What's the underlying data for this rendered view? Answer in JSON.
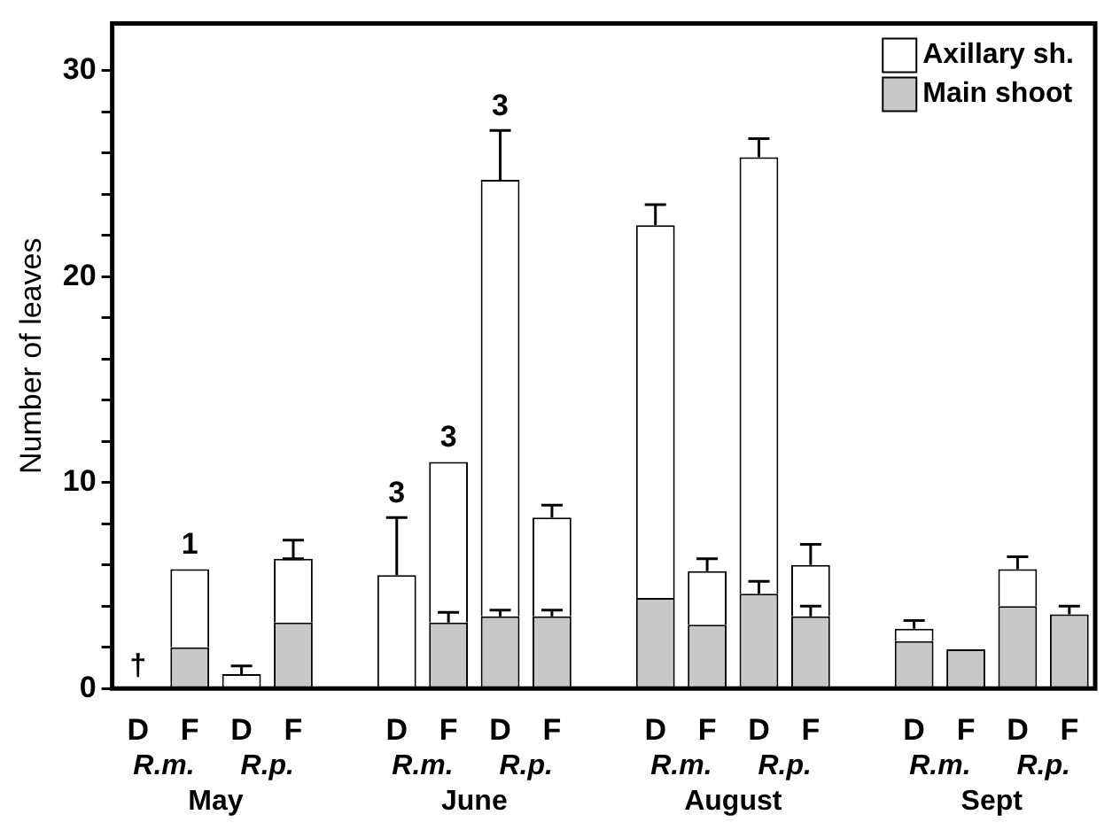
{
  "chart_data": {
    "type": "bar",
    "stacked": true,
    "ylabel": "Number of leaves",
    "categories": [
      "D",
      "F",
      "D",
      "F",
      null,
      "D",
      "F",
      "D",
      "F",
      null,
      "D",
      "F",
      "D",
      "F",
      null,
      "D",
      "F",
      "D",
      "F"
    ],
    "series": [
      {
        "name": "Main shoot",
        "color": "#c8c8c8",
        "values": [
          null,
          2.0,
          0,
          3.2,
          null,
          0,
          3.2,
          3.5,
          3.5,
          null,
          4.4,
          3.1,
          4.6,
          3.5,
          null,
          2.3,
          1.9,
          4.0,
          3.6
        ],
        "errors": [
          null,
          null,
          null,
          null,
          null,
          null,
          [
            3.2,
            3.7
          ],
          [
            3.5,
            3.8
          ],
          [
            3.5,
            3.8
          ],
          null,
          null,
          null,
          [
            4.6,
            5.2
          ],
          [
            3.5,
            4.0
          ],
          null,
          null,
          null,
          null,
          [
            3.6,
            4.0
          ]
        ]
      },
      {
        "name": "Axillary sh.",
        "color": "#ffffff",
        "values": [
          null,
          3.8,
          0.7,
          3.1,
          null,
          5.5,
          7.8,
          21.2,
          4.8,
          null,
          18.1,
          2.6,
          21.2,
          2.5,
          null,
          0.6,
          0,
          1.8,
          0
        ],
        "errors": [
          null,
          null,
          [
            0.7,
            1.1
          ],
          [
            6.3,
            7.2
          ],
          null,
          [
            5.5,
            8.3
          ],
          null,
          [
            24.7,
            27.1
          ],
          [
            8.3,
            8.9
          ],
          null,
          [
            22.5,
            23.5
          ],
          [
            5.7,
            6.3
          ],
          [
            25.8,
            26.7
          ],
          [
            6.0,
            7.0
          ],
          null,
          [
            2.9,
            3.3
          ],
          null,
          [
            5.8,
            6.4
          ],
          null
        ]
      }
    ],
    "ylim": [
      0,
      32.3
    ],
    "yticks": [
      0,
      {
        "value": 2,
        "label": null
      },
      {
        "value": 4,
        "label": null
      },
      {
        "value": 6,
        "label": null
      },
      {
        "value": 8,
        "label": null
      },
      10,
      {
        "value": 12,
        "label": null
      },
      {
        "value": 14,
        "label": null
      },
      {
        "value": 16,
        "label": null
      },
      {
        "value": 18,
        "label": null
      },
      20,
      {
        "value": 22,
        "label": null
      },
      {
        "value": 24,
        "label": null
      },
      {
        "value": 26,
        "label": null
      },
      {
        "value": 28,
        "label": null
      },
      30
    ],
    "grid": false,
    "legend": "top right",
    "annotations": [
      {
        "text": "1",
        "y": 5.8
      },
      {
        "text": "3",
        "y": 8.3
      },
      {
        "text": "3",
        "y": 11.0
      },
      {
        "text": "3",
        "y": 27.1
      },
      "†",
      "R.m.",
      "R.p.",
      "R.m.",
      "R.p.",
      "R.m.",
      "R.p.",
      "R.m.",
      "R.p.",
      "May",
      "June",
      "August",
      "Sept"
    ]
  }
}
